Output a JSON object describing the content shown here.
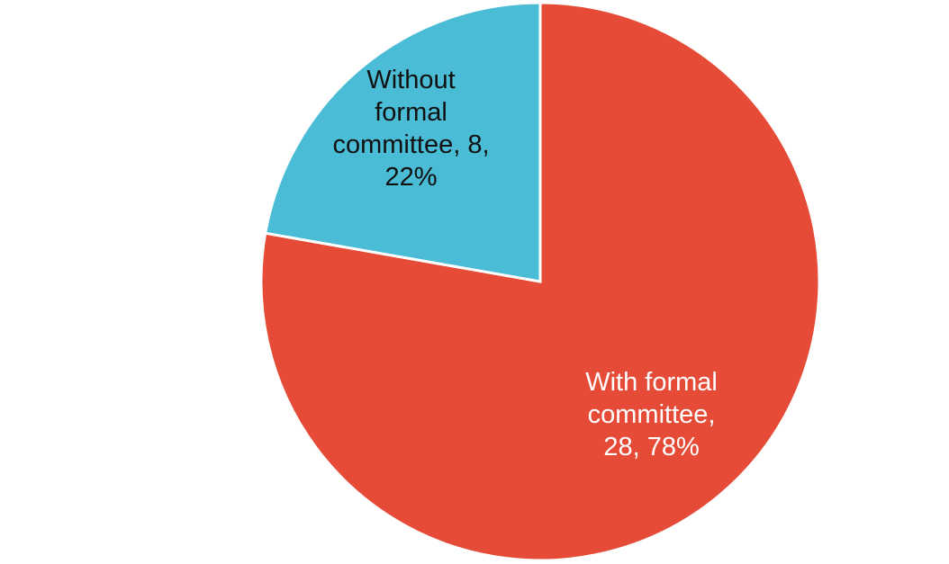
{
  "chart_data": {
    "type": "pie",
    "title": "",
    "slices": [
      {
        "label": "With formal committee",
        "value": 28,
        "percent": "78%",
        "color": "#E54B36",
        "label_color": "#FFFFFF",
        "label_lines": [
          "With formal",
          "committee,",
          "28, 78%"
        ]
      },
      {
        "label": "Without formal committee",
        "value": 8,
        "percent": "22%",
        "color": "#4ABCD6",
        "label_color": "#111111",
        "label_lines": [
          "Without",
          "formal",
          "committee, 8,",
          "22%"
        ]
      }
    ],
    "start_angle_deg": 0,
    "direction": "clockwise",
    "legend": "none"
  }
}
